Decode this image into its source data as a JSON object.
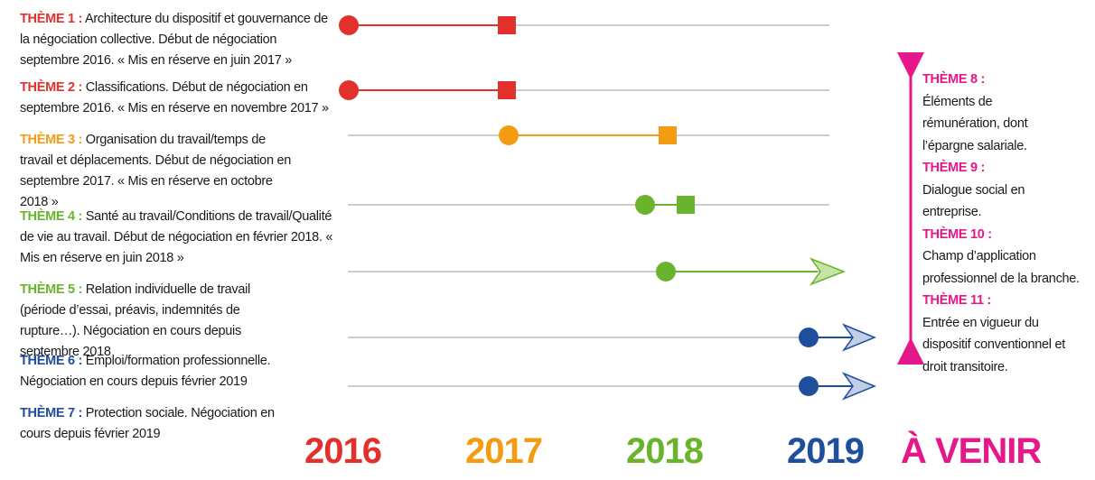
{
  "colors": {
    "red": "#e2312d",
    "orange": "#f39c12",
    "green": "#6ab42d",
    "blue": "#1f4e9c",
    "magenta": "#e5178a",
    "line": "#9a9a9a"
  },
  "themes": [
    {
      "label": "THÈME 1 :",
      "text": " Architecture du dispositif et gouvernance de la négociation collective. Début de négociation septembre 2016. « Mis en réserve en juin 2017 »",
      "color": "red"
    },
    {
      "label": "THÈME 2 :",
      "text": " Classifications. Début de négociation en septembre 2016. « Mis en réserve en novembre 2017 »",
      "color": "red"
    },
    {
      "label": "THÈME 3 :",
      "text": " Organisation du travail/temps de travail et déplacements. Début de négociation en septembre 2017. « Mis en réserve en octobre 2018 »",
      "color": "orange"
    },
    {
      "label": "THÈME 4 :",
      "text": " Santé au travail/Conditions de travail/Qualité de vie au travail. Début de négociation en février 2018. « Mis en réserve en juin 2018 »",
      "color": "green"
    },
    {
      "label": "THÈME 5 :",
      "text": " Relation individuelle de travail (période d’essai, préavis, indemnités de rupture…). Négociation en cours depuis septembre 2018",
      "color": "green"
    },
    {
      "label": "THÈME 6 :",
      "text": " Emploi/formation professionnelle. Négociation en cours depuis février 2019",
      "color": "blue"
    },
    {
      "label": "THÈME 7 :",
      "text": " Protection sociale. Négociation en cours depuis février 2019",
      "color": "blue"
    }
  ],
  "future_themes": [
    {
      "label": "THÈME 8 :",
      "text": "Éléments de rémunération, dont l’épargne salariale."
    },
    {
      "label": "THÈME 9 :",
      "text": "Dialogue social en entreprise."
    },
    {
      "label": "THÈME 10 :",
      "text": "Champ d’application professionnel de la branche."
    },
    {
      "label": "THÈME 11 :",
      "text": "Entrée en vigueur du dispositif conventionnel et droit transitoire."
    }
  ],
  "timeline": {
    "years": [
      "2016",
      "2017",
      "2018",
      "2019",
      "À VENIR"
    ],
    "year_colors": [
      "red",
      "orange",
      "green",
      "blue",
      "magenta"
    ],
    "bars": [
      {
        "theme": 1,
        "start": 2016.0,
        "end": 2017.0,
        "status": "reserved",
        "color": "red"
      },
      {
        "theme": 2,
        "start": 2016.0,
        "end": 2017.0,
        "status": "reserved",
        "color": "red"
      },
      {
        "theme": 3,
        "start": 2017.0,
        "end": 2018.0,
        "status": "reserved",
        "color": "orange"
      },
      {
        "theme": 4,
        "start": 2017.85,
        "end": 2018.3,
        "status": "reserved",
        "color": "green"
      },
      {
        "theme": 5,
        "start": 2018.0,
        "end": null,
        "status": "ongoing",
        "color": "green"
      },
      {
        "theme": 6,
        "start": 2019.0,
        "end": null,
        "status": "ongoing",
        "color": "blue"
      },
      {
        "theme": 7,
        "start": 2019.0,
        "end": null,
        "status": "ongoing",
        "color": "blue"
      }
    ]
  }
}
